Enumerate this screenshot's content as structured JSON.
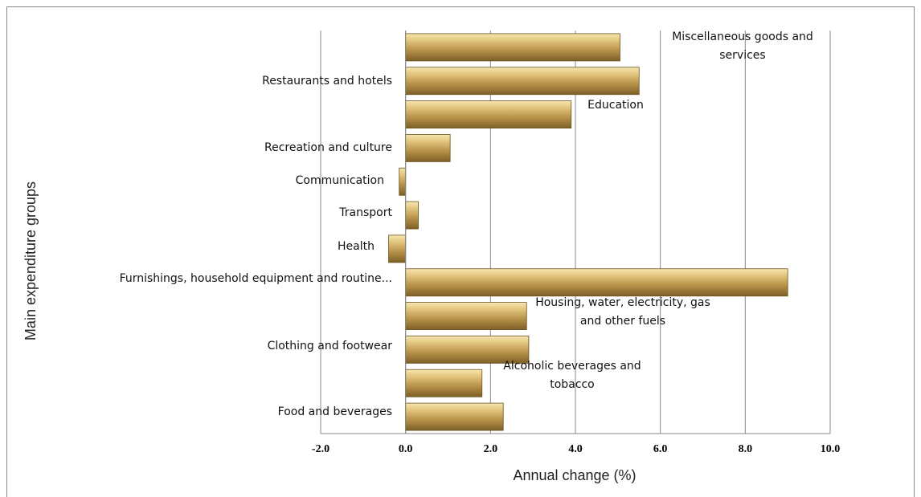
{
  "chart_data": {
    "type": "barh",
    "xlabel": "Annual change (%)",
    "ylabel": "Main expenditure groups",
    "categories": [
      "Food and  beverages",
      "Alcoholic beverages and tobacco",
      "Clothing and footwear",
      "Housing, water, electricity, gas and other fuels",
      "Furnishings, household equipment and routine...",
      "Health",
      "Transport",
      "Communication",
      "Recreation and culture",
      "Education",
      "Restaurants and hotels",
      "Miscellaneous goods and services"
    ],
    "values": [
      2.3,
      1.8,
      2.9,
      2.85,
      9.0,
      -0.4,
      0.3,
      -0.15,
      1.05,
      3.9,
      5.5,
      5.05
    ],
    "color": "#c4a35a",
    "xlim": [
      -2,
      10
    ],
    "xticks": [
      {
        "value": -2,
        "label": "-2.0"
      },
      {
        "value": 0,
        "label": "0.0"
      },
      {
        "value": 2,
        "label": "2.0"
      },
      {
        "value": 4,
        "label": "4.0"
      },
      {
        "value": 6,
        "label": "6.0"
      },
      {
        "value": 8,
        "label": "8.0"
      },
      {
        "value": 10,
        "label": "10.0"
      }
    ],
    "grid": true
  }
}
